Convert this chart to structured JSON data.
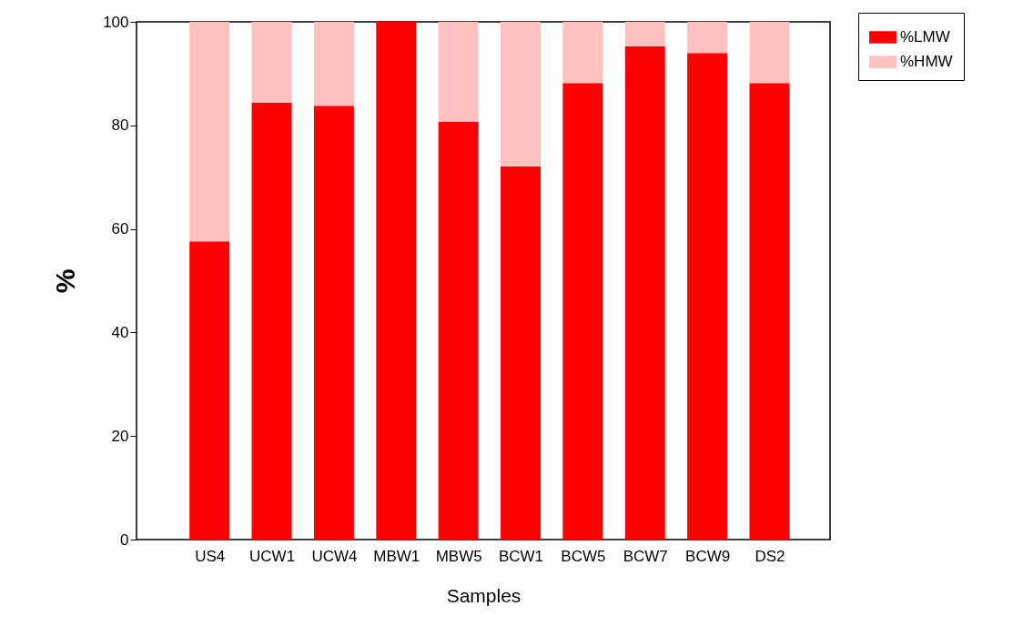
{
  "chart_data": {
    "type": "bar",
    "stacked": true,
    "xlabel": "Samples",
    "ylabel": "%",
    "categories": [
      "US4",
      "UCW1",
      "UCW4",
      "MBW1",
      "MBW5",
      "BCW1",
      "BCW5",
      "BCW7",
      "BCW9",
      "DS2"
    ],
    "series": [
      {
        "name": "%LMW",
        "color": "#ff0000",
        "values": [
          57.6,
          84.4,
          83.8,
          100,
          80.7,
          72.1,
          88.2,
          95.3,
          94.0,
          88.2
        ]
      },
      {
        "name": "%HMW",
        "color": "#ffc0c0",
        "values": [
          42.4,
          15.6,
          16.2,
          0,
          19.3,
          27.9,
          11.8,
          4.7,
          6.0,
          11.8
        ]
      }
    ],
    "ylim": [
      0,
      100
    ],
    "yticks": [
      0,
      20,
      40,
      60,
      80,
      100
    ],
    "grid": false,
    "legend": "top right"
  }
}
